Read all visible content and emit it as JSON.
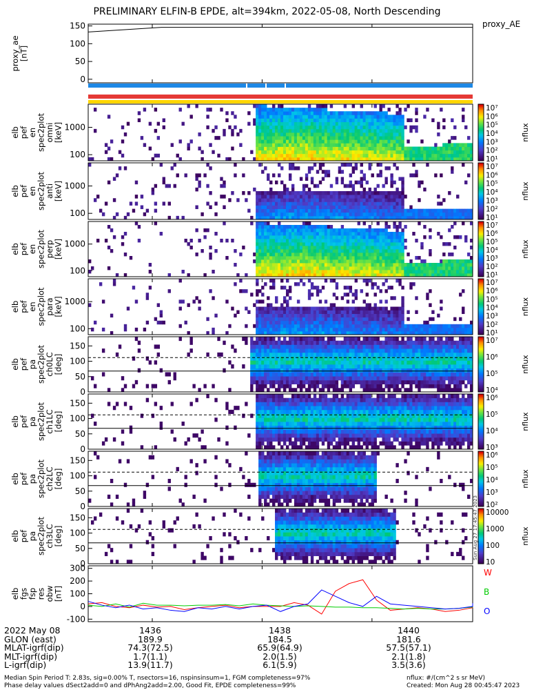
{
  "title": "PRELIMINARY ELFIN-B EPDE, alt=394km, 2022-05-08, North Descending",
  "proxy_label": "proxy_AE",
  "axes": {
    "proxy_ae": [
      "proxy_ae",
      "[nT]"
    ],
    "spec_en_1": [
      "elb",
      "pef",
      "en",
      "spec2plot",
      "omni",
      "[keV]"
    ],
    "spec_en_2": [
      "elb",
      "pef",
      "en",
      "spec2plot",
      "anti",
      "[keV]"
    ],
    "spec_en_3": [
      "elb",
      "pef",
      "en",
      "spec2plot",
      "perp",
      "[keV]"
    ],
    "spec_en_4": [
      "elb",
      "pef",
      "en",
      "spec2plot",
      "para",
      "[keV]"
    ],
    "pa_ch0": [
      "elb",
      "pef",
      "pa",
      "spec2plot",
      "ch0LC",
      "[deg]"
    ],
    "pa_ch1": [
      "elb",
      "pef",
      "pa",
      "spec2plot",
      "ch1LC",
      "[deg]"
    ],
    "pa_ch2": [
      "elb",
      "pef",
      "pa",
      "spec2plot",
      "ch2LC",
      "[deg]"
    ],
    "pa_ch3": [
      "elb",
      "pef",
      "pa",
      "spec2plot",
      "ch3LC",
      "[deg]"
    ],
    "fgs": [
      "elb",
      "fgs",
      "fsp",
      "res",
      "obw",
      "[nT]"
    ]
  },
  "colorbar_unit": "nflux",
  "fgs_legend": [
    "W",
    "B",
    "O"
  ],
  "tick_labels": {
    "ae": [
      "150",
      "100",
      "50",
      "0"
    ],
    "energy": [
      "1000",
      "100"
    ],
    "pa": [
      "150",
      "100",
      "50",
      "0"
    ],
    "fgs": [
      "300",
      "200",
      "100",
      "0",
      "-100"
    ],
    "cb_flux7": [
      "10⁷",
      "10⁶",
      "10⁵",
      "10⁴",
      "10³",
      "10²",
      "10¹"
    ],
    "cb_pa0": [
      "10⁷",
      "10⁶",
      "10⁵",
      "10⁴"
    ],
    "cb_pa1": [
      "10⁶",
      "10⁵",
      "10⁴",
      "10³"
    ],
    "cb_pa2": [
      "10⁶",
      "10⁵",
      "10⁴",
      "10³",
      "10²"
    ],
    "cb_pa3": [
      "10000",
      "1000",
      "100",
      "10"
    ]
  },
  "time_rows": [
    {
      "label": "2022 May 08",
      "values": [
        "1436",
        "1438",
        "1440"
      ]
    },
    {
      "label": "GLON (east)",
      "values": [
        "189.9",
        "184.5",
        "181.6"
      ]
    },
    {
      "label": "MLAT-igrf(dip)",
      "values": [
        "74.3(72.5)",
        "65.9(64.9)",
        "57.5(57.1)"
      ]
    },
    {
      "label": "MLT-igrf(dip)",
      "values": [
        "1.7(1.1)",
        "2.0(1.5)",
        "2.1(1.8)"
      ]
    },
    {
      "label": "L-igrf(dip)",
      "values": [
        "13.9(11.7)",
        "6.1(5.9)",
        "3.5(3.6)"
      ]
    }
  ],
  "footer": {
    "line1": "Median Spin Period T: 2.83s, sig=0.00% T, nsectors=16, nspinsinsum=1, FGM completeness=97%",
    "line2": "Phase delay values dSect2add=0 and dPhAng2add=2.00, Good Fit, EPDE completeness=99%",
    "units": "nflux: #/(cm^2 s sr MeV)",
    "created": "Created: Mon Aug 28 00:45:47 2023"
  },
  "stamp": "Sun Aug 27 17:45:47 2023",
  "chart_data": [
    {
      "type": "line",
      "name": "proxy_ae",
      "ylim": [
        -10,
        155
      ],
      "x": [
        "14:34:50",
        "14:36:10",
        "14:41:50"
      ],
      "values": [
        133,
        146,
        146
      ]
    },
    {
      "type": "heatmap",
      "name": "spec_en_1",
      "y_scale": "log",
      "ylim": [
        60,
        7000
      ],
      "note_features": "energetic precipitation from 14:37:50, with broad enhancement to ~4000 keV"
    },
    {
      "type": "heatmap",
      "name": "spec_en_2",
      "y_scale": "log",
      "ylim": [
        60,
        7000
      ]
    },
    {
      "type": "heatmap",
      "name": "spec_en_3",
      "y_scale": "log",
      "ylim": [
        60,
        7000
      ]
    },
    {
      "type": "heatmap",
      "name": "spec_en_4",
      "y_scale": "log",
      "ylim": [
        60,
        7000
      ]
    },
    {
      "type": "heatmap",
      "name": "pa_ch0",
      "ylim": [
        0,
        180
      ]
    },
    {
      "type": "heatmap",
      "name": "pa_ch1",
      "ylim": [
        0,
        180
      ]
    },
    {
      "type": "heatmap",
      "name": "pa_ch2",
      "ylim": [
        0,
        180
      ]
    },
    {
      "type": "heatmap",
      "name": "pa_ch3",
      "ylim": [
        0,
        180
      ]
    },
    {
      "type": "line",
      "name": "fgs",
      "ylim": [
        -120,
        320
      ],
      "x_min": [
        0,
        0.25,
        0.5,
        0.75,
        1.0,
        1.25,
        1.5,
        1.75,
        2.0,
        2.25,
        2.5,
        2.75,
        3.0,
        3.25,
        3.5,
        3.75,
        4.0,
        4.25,
        4.5,
        4.75,
        5.0,
        5.25,
        5.5,
        5.75,
        6.0,
        6.25,
        6.5,
        6.75,
        7.0,
        7.25
      ],
      "series": [
        {
          "name": "W",
          "color": "#ff0000",
          "values": [
            20,
            30,
            0,
            -10,
            10,
            -5,
            0,
            -25,
            -10,
            0,
            10,
            -10,
            0,
            0,
            0,
            30,
            10,
            -60,
            120,
            180,
            210,
            50,
            -30,
            -20,
            -10,
            -20,
            -40,
            -30,
            -10,
            20
          ]
        },
        {
          "name": "B",
          "color": "#00cc00",
          "values": [
            10,
            0,
            20,
            -5,
            25,
            10,
            10,
            5,
            10,
            10,
            15,
            5,
            20,
            10,
            5,
            0,
            5,
            0,
            -5,
            -5,
            -10,
            -10,
            -15,
            -20,
            -15,
            -20,
            -20,
            -15,
            -5,
            10
          ]
        },
        {
          "name": "O",
          "color": "#0000ff",
          "values": [
            40,
            10,
            -10,
            10,
            -20,
            -10,
            -30,
            -40,
            -10,
            -20,
            0,
            -20,
            0,
            10,
            -40,
            0,
            20,
            130,
            80,
            30,
            0,
            80,
            20,
            10,
            0,
            -10,
            -20,
            -15,
            0,
            25
          ]
        }
      ]
    }
  ]
}
